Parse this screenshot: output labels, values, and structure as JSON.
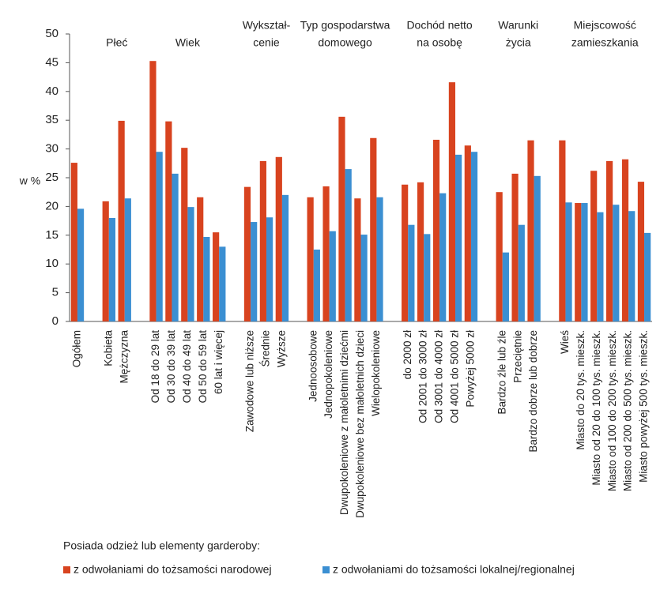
{
  "chart_data": {
    "type": "bar",
    "ylabel": "w %",
    "legend_title": "Posiada odzież lub elementy garderoby:",
    "ylim": [
      0,
      50
    ],
    "yticks": [
      0,
      5,
      10,
      15,
      20,
      25,
      30,
      35,
      40,
      45,
      50
    ],
    "categories": [
      "Ogółem",
      null,
      "Kobieta",
      "Mężczyzna",
      null,
      "Od 18 do 29 lat",
      "Od 30 do 39 lat",
      "Od 40 do 49 lat",
      "Od 50 do 59 lat",
      "60 lat i więcej",
      null,
      "Zawodowe lub niższe",
      "Średnie",
      "Wyższe",
      null,
      "Jednoosobowe",
      "Jednopokoleniowe",
      "Dwupokoleniowe z małoletnimi dziećmi",
      "Dwupokoleniowe bez małoletnich dzieci",
      "Wielopokoleniowe",
      null,
      "do 2000 zł",
      "Od 2001 do 3000 zł",
      "Od 3001 do 4000 zł",
      "Od 4001 do 5000 zł",
      "Powyżej 5000 zł",
      null,
      "Bardzo źle lub źle",
      "Przeciętnie",
      "Bardzo dobrze lub dobrze",
      null,
      "Wieś",
      "Miasto do 20 tys. mieszk.",
      "Miasto od 20 do 100 tys. mieszk.",
      "Miasto od 100 do 200 tys. mieszk.",
      "Miasto od 200 do 500 tys. mieszk.",
      "Miasto powyżej 500 tys. mieszk."
    ],
    "groups": [
      {
        "label": [
          "Płeć"
        ],
        "from": 2,
        "to": 3
      },
      {
        "label": [
          "Wiek"
        ],
        "from": 5,
        "to": 9
      },
      {
        "label": [
          "Wykształ-",
          "cenie"
        ],
        "from": 11,
        "to": 13
      },
      {
        "label": [
          "Typ gospodarstwa",
          "domowego"
        ],
        "from": 15,
        "to": 19
      },
      {
        "label": [
          "Dochód netto",
          "na osobę"
        ],
        "from": 21,
        "to": 25
      },
      {
        "label": [
          "Warunki",
          "życia"
        ],
        "from": 27,
        "to": 29
      },
      {
        "label": [
          "Miejscowość",
          "zamieszkania"
        ],
        "from": 31,
        "to": 36
      }
    ],
    "series": [
      {
        "name": "z odwołaniami do tożsamości narodowej",
        "color": "#d8431f",
        "values": [
          27.6,
          null,
          20.9,
          34.9,
          null,
          45.3,
          34.8,
          30.2,
          21.6,
          15.5,
          null,
          23.4,
          27.9,
          28.6,
          null,
          21.6,
          23.5,
          35.6,
          21.4,
          31.9,
          null,
          23.8,
          24.2,
          31.6,
          41.6,
          30.6,
          null,
          22.5,
          25.7,
          31.5,
          null,
          31.5,
          20.6,
          26.2,
          27.9,
          28.2,
          24.3
        ]
      },
      {
        "name": "z odwołaniami do tożsamości lokalnej/regionalnej",
        "color": "#3b8fd2",
        "values": [
          19.6,
          null,
          18.0,
          21.4,
          null,
          29.5,
          25.7,
          19.9,
          14.7,
          13.0,
          null,
          17.3,
          18.1,
          22.0,
          null,
          12.5,
          15.7,
          26.5,
          15.1,
          21.6,
          null,
          16.8,
          15.2,
          22.3,
          29.0,
          29.5,
          null,
          12.0,
          16.8,
          25.3,
          null,
          20.7,
          20.6,
          19.0,
          20.3,
          19.2,
          15.4
        ]
      }
    ]
  }
}
